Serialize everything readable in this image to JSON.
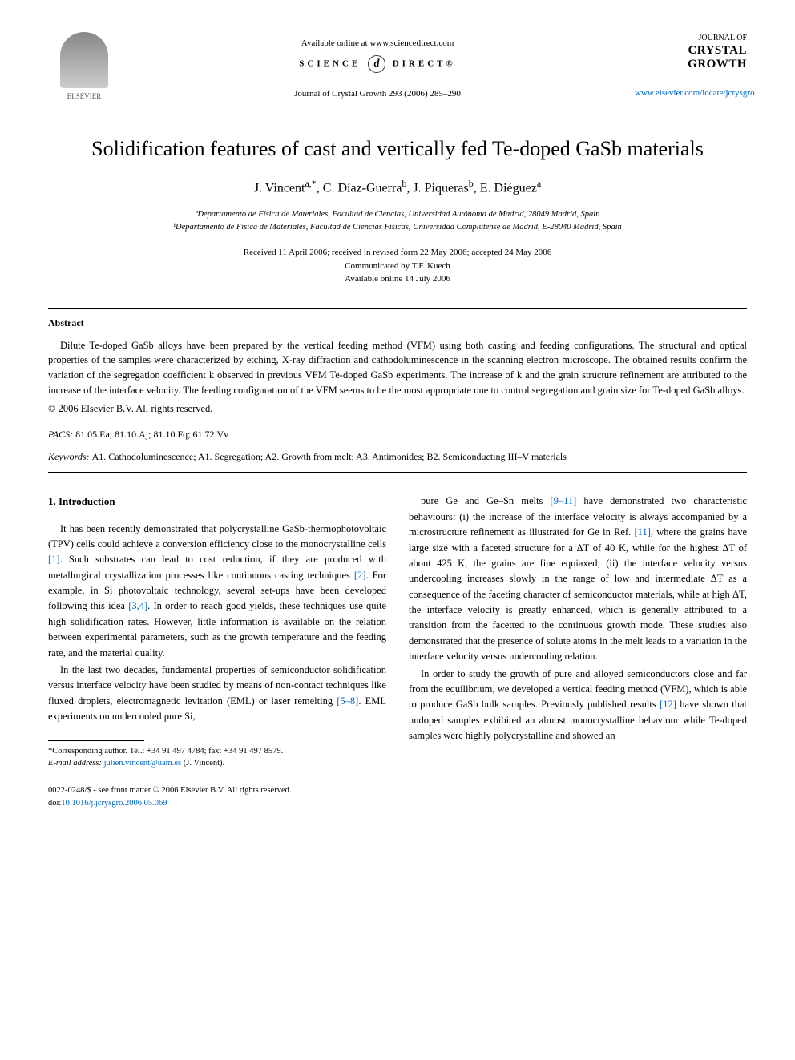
{
  "header": {
    "available_text": "Available online at www.sciencedirect.com",
    "sd_left": "SCIENCE",
    "sd_at": "d",
    "sd_right": "DIRECT®",
    "journal_ref": "Journal of Crystal Growth 293 (2006) 285–290",
    "elsevier_label": "ELSEVIER",
    "journal_logo_top": "JOURNAL OF",
    "journal_logo_main1": "CRYSTAL",
    "journal_logo_main2": "GROWTH",
    "journal_url": "www.elsevier.com/locate/jcrysgro"
  },
  "title": "Solidification features of cast and vertically fed Te-doped GaSb materials",
  "authors_html": "J. Vincent<sup>a,*</sup>, C. Díaz-Guerra<sup>b</sup>, J. Piqueras<sup>b</sup>, E. Diéguez<sup>a</sup>",
  "affiliations": {
    "a": "ªDepartamento de Física de Materiales, Facultad de Ciencias, Universidad Autónoma de Madrid, 28049 Madrid, Spain",
    "b": "ᵇDepartamento de Física de Materiales, Facultad de Ciencias Físicas, Universidad Complutense de Madrid, E-28040 Madrid, Spain"
  },
  "dates": {
    "received": "Received 11 April 2006; received in revised form 22 May 2006; accepted 24 May 2006",
    "communicated": "Communicated by T.F. Kuech",
    "online": "Available online 14 July 2006"
  },
  "abstract": {
    "heading": "Abstract",
    "body": "Dilute Te-doped GaSb alloys have been prepared by the vertical feeding method (VFM) using both casting and feeding configurations. The structural and optical properties of the samples were characterized by etching, X-ray diffraction and cathodoluminescence in the scanning electron microscope. The obtained results confirm the variation of the segregation coefficient k observed in previous VFM Te-doped GaSb experiments. The increase of k and the grain structure refinement are attributed to the increase of the interface velocity. The feeding configuration of the VFM seems to be the most appropriate one to control segregation and grain size for Te-doped GaSb alloys.",
    "copyright": "© 2006 Elsevier B.V. All rights reserved."
  },
  "pacs": {
    "label": "PACS:",
    "codes": "81.05.Ea; 81.10.Aj; 81.10.Fq; 61.72.Vv"
  },
  "keywords": {
    "label": "Keywords:",
    "list": "A1. Cathodoluminescence; A1. Segregation; A2. Growth from melt; A3. Antimonides; B2. Semiconducting III–V materials"
  },
  "body": {
    "section_heading": "1. Introduction",
    "left_paragraphs": [
      "It has been recently demonstrated that polycrystalline GaSb-thermophotovoltaic (TPV) cells could achieve a conversion efficiency close to the monocrystalline cells [1]. Such substrates can lead to cost reduction, if they are produced with metallurgical crystallization processes like continuous casting techniques [2]. For example, in Si photovoltaic technology, several set-ups have been developed following this idea [3,4]. In order to reach good yields, these techniques use quite high solidification rates. However, little information is available on the relation between experimental parameters, such as the growth temperature and the feeding rate, and the material quality.",
      "In the last two decades, fundamental properties of semiconductor solidification versus interface velocity have been studied by means of non-contact techniques like fluxed droplets, electromagnetic levitation (EML) or laser remelting [5–8]. EML experiments on undercooled pure Si,"
    ],
    "right_paragraphs": [
      "pure Ge and Ge–Sn melts [9–11] have demonstrated two characteristic behaviours: (i) the increase of the interface velocity is always accompanied by a microstructure refinement as illustrated for Ge in Ref. [11], where the grains have large size with a faceted structure for a ΔT of 40 K, while for the highest ΔT of about 425 K, the grains are fine equiaxed; (ii) the interface velocity versus undercooling increases slowly in the range of low and intermediate ΔT as a consequence of the faceting character of semiconductor materials, while at high ΔT, the interface velocity is greatly enhanced, which is generally attributed to a transition from the facetted to the continuous growth mode. These studies also demonstrated that the presence of solute atoms in the melt leads to a variation in the interface velocity versus undercooling relation.",
      "In order to study the growth of pure and alloyed semiconductors close and far from the equilibrium, we developed a vertical feeding method (VFM), which is able to produce GaSb bulk samples. Previously published results [12] have shown that undoped samples exhibited an almost monocrystalline behaviour while Te-doped samples were highly polycrystalline and showed an"
    ],
    "ref_links": [
      "[1]",
      "[2]",
      "[3,4]",
      "[5–8]",
      "[9–11]",
      "[11]",
      "[12]"
    ],
    "link_color": "#0066cc"
  },
  "footnote": {
    "corr": "*Corresponding author. Tel.: +34 91 497 4784; fax: +34 91 497 8579.",
    "email_label": "E-mail address:",
    "email": "julien.vincent@uam.es",
    "email_paren": "(J. Vincent)."
  },
  "footer": {
    "left1": "0022-0248/$ - see front matter © 2006 Elsevier B.V. All rights reserved.",
    "left2_label": "doi:",
    "left2_doi": "10.1016/j.jcrysgro.2006.05.069"
  },
  "colors": {
    "text": "#000000",
    "link": "#0066cc",
    "rule": "#999999",
    "background": "#ffffff"
  },
  "typography": {
    "title_size_pt": 20,
    "authors_size_pt": 12,
    "body_size_pt": 9.5,
    "abstract_size_pt": 9.5,
    "footnote_size_pt": 8
  }
}
